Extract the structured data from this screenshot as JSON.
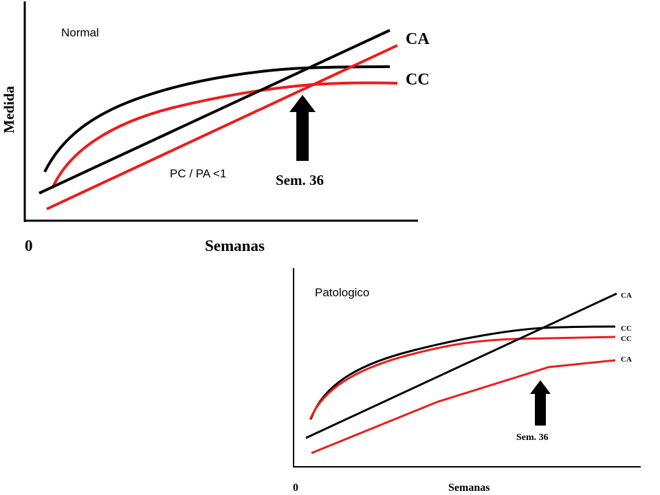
{
  "colors": {
    "black": "#000000",
    "red": "#ee1c1c",
    "white": "#ffffff"
  },
  "top_panel": {
    "title": "Normal",
    "ylabel": "Medida",
    "xlabel": "Semanas",
    "origin": "0",
    "ratio_label": "PC / PA <1",
    "arrow_label": "Sem. 36",
    "curve_labels": {
      "ca": "CA",
      "cc": "CC"
    }
  },
  "bottom_panel": {
    "title": "Patologico",
    "xlabel": "Semanas",
    "origin": "0",
    "arrow_label": "Sem. 36",
    "curve_labels": {
      "ca_black": "CA",
      "cc_black": "CC",
      "cc_red": "CC",
      "ca_red": "CA"
    }
  }
}
